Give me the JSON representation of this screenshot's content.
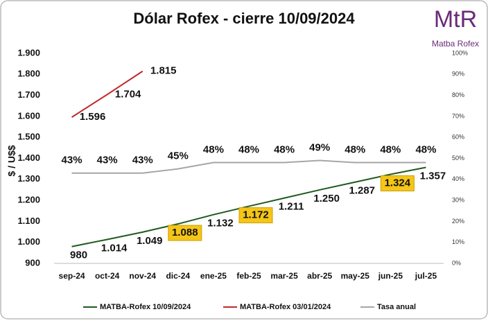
{
  "chart_data": {
    "type": "line",
    "title": "Dólar Rofex - cierre 10/09/2024",
    "ylabel": "$ / U$$",
    "logo": {
      "mark": "MtR",
      "name": "Matba Rofex"
    },
    "categories": [
      "sep-24",
      "oct-24",
      "nov-24",
      "dic-24",
      "ene-25",
      "feb-25",
      "mar-25",
      "abr-25",
      "may-25",
      "jun-25",
      "jul-25"
    ],
    "series": [
      {
        "name": "MATBA-Rofex 10/09/2024",
        "color": "#1e5a1e",
        "values": [
          980,
          1014,
          1049,
          1088,
          1132,
          1172,
          1211,
          1250,
          1287,
          1324,
          1357
        ],
        "value_labels": [
          "980",
          "1.014",
          "1.049",
          "1.088",
          "1.132",
          "1.172",
          "1.211",
          "1.250",
          "1.287",
          "1.324",
          "1.357"
        ],
        "highlighted": [
          3,
          5,
          9
        ],
        "highlight_color": "#f5c518"
      },
      {
        "name": "MATBA-Rofex 03/01/2024",
        "color": "#c0292b",
        "values": [
          1596,
          1704,
          1815,
          null,
          null,
          null,
          null,
          null,
          null,
          null,
          null
        ],
        "value_labels": [
          "1.596",
          "1.704",
          "1.815",
          null,
          null,
          null,
          null,
          null,
          null,
          null,
          null
        ]
      },
      {
        "name": "Tasa anual",
        "color": "#a6a6a6",
        "axis": "y2",
        "values": [
          43,
          43,
          43,
          45,
          48,
          48,
          48,
          49,
          48,
          48,
          48
        ],
        "value_labels": [
          "43%",
          "43%",
          "43%",
          "45%",
          "48%",
          "48%",
          "48%",
          "49%",
          "48%",
          "48%",
          "48%"
        ]
      }
    ],
    "ylim": [
      900,
      1900
    ],
    "yticks": [
      {
        "value": 900,
        "label": "900"
      },
      {
        "value": 1000,
        "label": "1.000"
      },
      {
        "value": 1100,
        "label": "1.100"
      },
      {
        "value": 1200,
        "label": "1.200"
      },
      {
        "value": 1300,
        "label": "1.300"
      },
      {
        "value": 1400,
        "label": "1.400"
      },
      {
        "value": 1500,
        "label": "1.500"
      },
      {
        "value": 1600,
        "label": "1.600"
      },
      {
        "value": 1700,
        "label": "1.700"
      },
      {
        "value": 1800,
        "label": "1.800"
      },
      {
        "value": 1900,
        "label": "1.900"
      }
    ],
    "y2lim": [
      0,
      100
    ],
    "y2ticks": [
      {
        "value": 0,
        "label": "0%"
      },
      {
        "value": 10,
        "label": "10%"
      },
      {
        "value": 20,
        "label": "20%"
      },
      {
        "value": 30,
        "label": "30%"
      },
      {
        "value": 40,
        "label": "40%"
      },
      {
        "value": 50,
        "label": "50%"
      },
      {
        "value": 60,
        "label": "60%"
      },
      {
        "value": 70,
        "label": "70%"
      },
      {
        "value": 80,
        "label": "80%"
      },
      {
        "value": 90,
        "label": "90%"
      },
      {
        "value": 100,
        "label": "100%"
      }
    ],
    "legend": "bottom"
  }
}
